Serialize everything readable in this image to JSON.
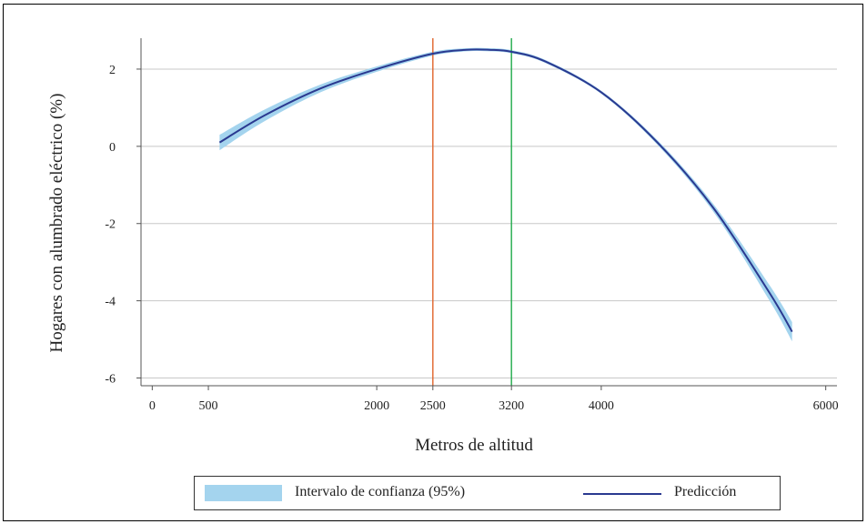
{
  "chart_data": {
    "type": "line",
    "xlabel": "Metros de altitud",
    "ylabel": "Hogares con alumbrado eléctrico (%)",
    "x_ticks": [
      0,
      500,
      2000,
      2500,
      3200,
      4000,
      6000
    ],
    "x_tick_labels": [
      "0",
      "500",
      "2000",
      "2500",
      "3200",
      "4000",
      "6000"
    ],
    "y_ticks": [
      2,
      0,
      -2,
      -4,
      -6
    ],
    "y_tick_labels": [
      "2",
      "0",
      "-2",
      "-4",
      "-6"
    ],
    "xlim": [
      -100,
      6100
    ],
    "ylim": [
      -6.2,
      2.8
    ],
    "grid": "horizontal",
    "vertical_lines": [
      {
        "x": 2500,
        "color": "#e0632a"
      },
      {
        "x": 3200,
        "color": "#1faa4a"
      }
    ],
    "series": [
      {
        "name": "Predicción",
        "type": "line",
        "color": "#2a3990",
        "x": [
          600,
          1000,
          1500,
          2000,
          2500,
          2800,
          3000,
          3200,
          3500,
          4000,
          4500,
          5000,
          5500,
          5700
        ],
        "y": [
          0.1,
          0.8,
          1.5,
          2.0,
          2.4,
          2.5,
          2.5,
          2.45,
          2.2,
          1.4,
          0.1,
          -1.6,
          -3.8,
          -4.8
        ]
      },
      {
        "name": "Intervalo de confianza (95%)",
        "type": "band",
        "color": "#a4d4ee",
        "x": [
          600,
          1000,
          1500,
          2000,
          2500,
          2800,
          3000,
          3200,
          3500,
          4000,
          4500,
          5000,
          5500,
          5700
        ],
        "lower": [
          -0.1,
          0.65,
          1.4,
          1.93,
          2.35,
          2.46,
          2.46,
          2.41,
          2.16,
          1.36,
          0.04,
          -1.7,
          -4.0,
          -5.05
        ],
        "upper": [
          0.3,
          0.95,
          1.6,
          2.07,
          2.45,
          2.54,
          2.54,
          2.49,
          2.24,
          1.44,
          0.16,
          -1.5,
          -3.6,
          -4.55
        ]
      }
    ],
    "legend": [
      {
        "label": "Intervalo de confianza (95%)",
        "kind": "band"
      },
      {
        "label": "Predicción",
        "kind": "line"
      }
    ],
    "legend_position": "bottom"
  }
}
